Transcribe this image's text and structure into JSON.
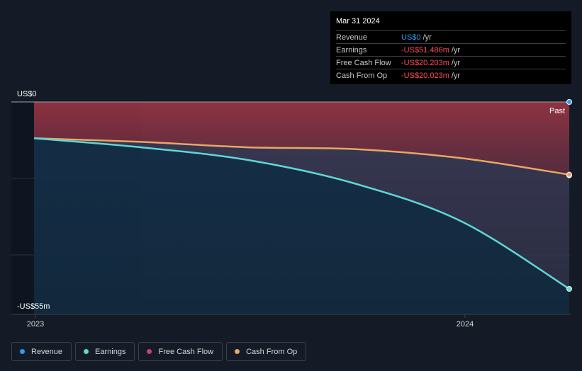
{
  "chart_data": {
    "type": "area",
    "y_top_label": "US$0",
    "y_bottom_label": "-US$55m",
    "ylim": [
      -55,
      0
    ],
    "xlim": [
      2022.97,
      2024.25
    ],
    "x_ticks": [
      {
        "value": 2023.0,
        "label": "2023"
      },
      {
        "value": 2024.0,
        "label": "2024"
      }
    ],
    "past_label": "Past",
    "shaded_until": 2023.25,
    "series": [
      {
        "name": "Revenue",
        "color": "#2e9bea",
        "x": [
          2024.25
        ],
        "values": [
          0
        ]
      },
      {
        "name": "Earnings",
        "color": "#5fd7d4",
        "x": [
          2023.0,
          2023.25,
          2023.5,
          2023.75,
          2024.0,
          2024.25
        ],
        "values": [
          -10,
          -12.5,
          -16,
          -22.5,
          -33,
          -51.486
        ]
      },
      {
        "name": "Free Cash Flow",
        "color": "#c2407e",
        "x": [
          2023.0,
          2023.25,
          2023.5,
          2023.75,
          2024.0,
          2024.25
        ],
        "values": [
          -10,
          -11,
          -12.5,
          -13,
          -15.5,
          -20.203
        ]
      },
      {
        "name": "Cash From Op",
        "color": "#e8a664",
        "x": [
          2023.0,
          2023.25,
          2023.5,
          2023.75,
          2024.0,
          2024.25
        ],
        "values": [
          -10,
          -11,
          -12.5,
          -13,
          -15.5,
          -20.023
        ]
      }
    ]
  },
  "tooltip": {
    "date": "Mar 31 2024",
    "rows": [
      {
        "label": "Revenue",
        "value": "US$0",
        "unit": "/yr",
        "color": "blue"
      },
      {
        "label": "Earnings",
        "value": "-US$51.486m",
        "unit": "/yr",
        "color": "red"
      },
      {
        "label": "Free Cash Flow",
        "value": "-US$20.203m",
        "unit": "/yr",
        "color": "red"
      },
      {
        "label": "Cash From Op",
        "value": "-US$20.023m",
        "unit": "/yr",
        "color": "red"
      }
    ]
  },
  "legend": [
    {
      "label": "Revenue",
      "color": "#2e9bea"
    },
    {
      "label": "Earnings",
      "color": "#5fd7d4"
    },
    {
      "label": "Free Cash Flow",
      "color": "#c2407e"
    },
    {
      "label": "Cash From Op",
      "color": "#e8a664"
    }
  ]
}
